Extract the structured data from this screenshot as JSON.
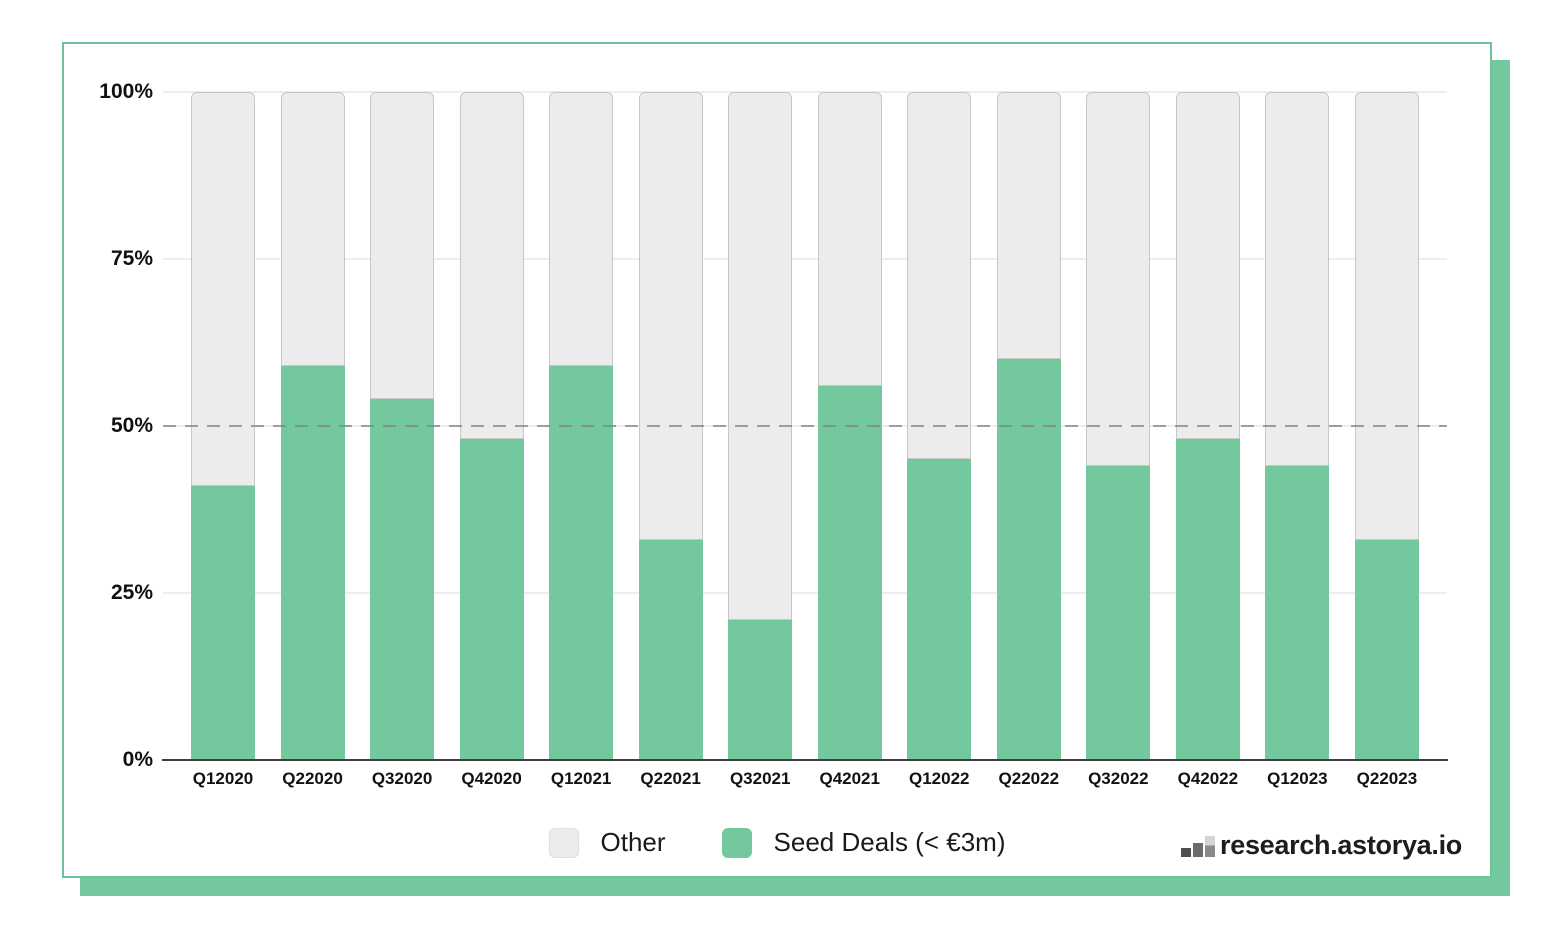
{
  "legend": {
    "items": [
      {
        "label": "Other",
        "color": "#ECECEC"
      },
      {
        "label": "Seed Deals (< €3m)",
        "color": "#73C89E"
      }
    ]
  },
  "brand": {
    "icon": "bar-chart-icon",
    "text": "research.astorya.io"
  },
  "colors": {
    "seed_green": "#73C89E",
    "other_gray": "#ECECEC",
    "other_border": "#C7C7C7",
    "card_border_green": "#69C497",
    "card_shadow_green": "#73C89E",
    "gridline": "#EDEDED",
    "axis_line": "#3E3E3E",
    "reference_dash": "#828282"
  },
  "chart_data": {
    "type": "bar",
    "stacked": true,
    "percent_stacked": true,
    "title": "",
    "xlabel": "",
    "ylabel": "",
    "ylim": [
      0,
      100
    ],
    "grid": true,
    "legend_position": "bottom",
    "yticks": [
      "100%",
      "75%",
      "50%",
      "25%",
      "0%"
    ],
    "categories": [
      "Q12020",
      "Q22020",
      "Q32020",
      "Q42020",
      "Q12021",
      "Q22021",
      "Q32021",
      "Q42021",
      "Q12022",
      "Q22022",
      "Q32022",
      "Q42022",
      "Q12023",
      "Q22023"
    ],
    "series": [
      {
        "name": "Seed Deals (< €3m)",
        "color": "#73C89E",
        "values": [
          41,
          59,
          54,
          48,
          59,
          33,
          21,
          56,
          45,
          60,
          44,
          48,
          44,
          33
        ]
      },
      {
        "name": "Other",
        "color": "#ECECEC",
        "values": [
          59,
          41,
          46,
          52,
          41,
          67,
          79,
          44,
          55,
          40,
          56,
          52,
          56,
          67
        ]
      }
    ],
    "reference_line": {
      "value": 50,
      "style": "dashed",
      "color": "#828282"
    }
  }
}
